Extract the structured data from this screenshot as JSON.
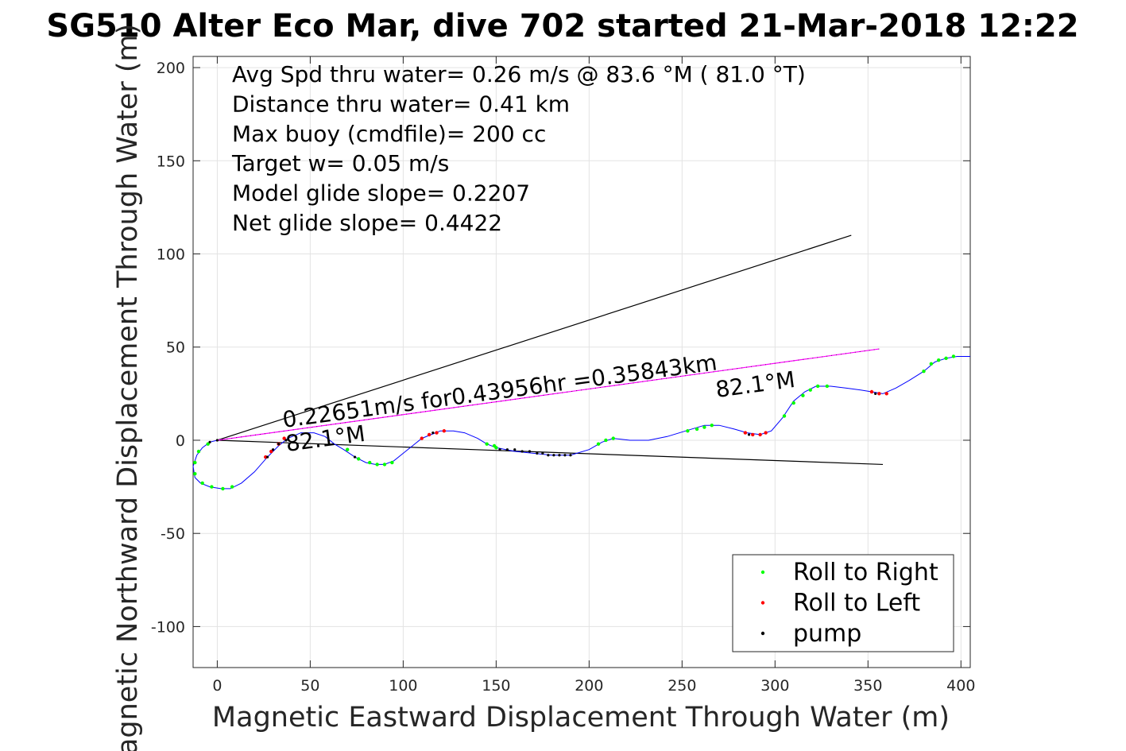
{
  "chart_data": {
    "type": "scatter",
    "title": "SG510 Alter Eco Mar, dive 702 started 21-Mar-2018 12:22",
    "xlabel": "Magnetic Eastward Displacement Through Water (m)",
    "ylabel": "Magnetic Northward Displacement Through Water (m)",
    "xlim": [
      -13,
      405
    ],
    "ylim": [
      -122,
      206
    ],
    "x_ticks": [
      0,
      50,
      100,
      150,
      200,
      250,
      300,
      350,
      400
    ],
    "y_ticks": [
      -100,
      -50,
      0,
      50,
      100,
      150,
      200
    ],
    "grid": true,
    "legend_position": "bottom-right",
    "stats_text": [
      "Avg Spd thru water=  0.26 m/s @  83.6 °M ( 81.0 °T)",
      "Distance thru water=  0.41 km",
      "Max buoy (cmdfile)= 200 cc",
      "Target w= 0.05 m/s",
      "Model glide slope= 0.2207",
      "Net glide slope= 0.4422"
    ],
    "annotations": {
      "current_label": "0.22651m/s for0.43956hr =0.35843km",
      "heading_start": "82.1°M",
      "heading_end": "82.1°M"
    },
    "track": {
      "name": "track",
      "color": "#0000ff",
      "points": [
        [
          0,
          0
        ],
        [
          -4,
          -1
        ],
        [
          -8,
          -4
        ],
        [
          -11,
          -8
        ],
        [
          -13,
          -14
        ],
        [
          -12,
          -20
        ],
        [
          -9,
          -23
        ],
        [
          -4,
          -25
        ],
        [
          2,
          -26
        ],
        [
          7,
          -26
        ],
        [
          13,
          -23
        ],
        [
          20,
          -17
        ],
        [
          27,
          -9
        ],
        [
          33,
          -3
        ],
        [
          38,
          1
        ],
        [
          45,
          4
        ],
        [
          52,
          4
        ],
        [
          58,
          2
        ],
        [
          63,
          -2
        ],
        [
          68,
          -5
        ],
        [
          74,
          -9
        ],
        [
          80,
          -12
        ],
        [
          85,
          -13
        ],
        [
          90,
          -13
        ],
        [
          95,
          -11
        ],
        [
          100,
          -7
        ],
        [
          105,
          -3
        ],
        [
          110,
          1
        ],
        [
          115,
          3
        ],
        [
          120,
          5
        ],
        [
          127,
          5
        ],
        [
          133,
          4
        ],
        [
          140,
          1
        ],
        [
          145,
          -2
        ],
        [
          150,
          -4
        ],
        [
          160,
          -6
        ],
        [
          170,
          -7
        ],
        [
          180,
          -8
        ],
        [
          190,
          -8
        ],
        [
          200,
          -5
        ],
        [
          207,
          -1
        ],
        [
          213,
          1
        ],
        [
          222,
          0
        ],
        [
          232,
          0
        ],
        [
          242,
          2
        ],
        [
          252,
          5
        ],
        [
          262,
          8
        ],
        [
          270,
          8
        ],
        [
          278,
          6
        ],
        [
          285,
          4
        ],
        [
          292,
          3
        ],
        [
          298,
          5
        ],
        [
          304,
          12
        ],
        [
          310,
          21
        ],
        [
          316,
          26
        ],
        [
          322,
          29
        ],
        [
          330,
          29
        ],
        [
          338,
          28
        ],
        [
          346,
          27
        ],
        [
          352,
          26
        ],
        [
          358,
          25
        ],
        [
          365,
          28
        ],
        [
          372,
          32
        ],
        [
          380,
          37
        ],
        [
          386,
          42
        ],
        [
          392,
          44
        ],
        [
          398,
          45
        ],
        [
          405,
          45
        ]
      ]
    },
    "roll_right": {
      "name": "Roll to Right",
      "color": "#00ff00",
      "points": [
        [
          -5,
          -2
        ],
        [
          -10,
          -6
        ],
        [
          -12,
          -12
        ],
        [
          -12,
          -18
        ],
        [
          -8,
          -23
        ],
        [
          -3,
          -25
        ],
        [
          3,
          -26
        ],
        [
          8,
          -25
        ],
        [
          70,
          -5
        ],
        [
          76,
          -10
        ],
        [
          82,
          -12
        ],
        [
          86,
          -13
        ],
        [
          90,
          -13
        ],
        [
          94,
          -12
        ],
        [
          145,
          -2
        ],
        [
          149,
          -3
        ],
        [
          150,
          -4
        ],
        [
          205,
          -2
        ],
        [
          209,
          0
        ],
        [
          213,
          1
        ],
        [
          253,
          5
        ],
        [
          258,
          6
        ],
        [
          262,
          7
        ],
        [
          266,
          8
        ],
        [
          305,
          13
        ],
        [
          310,
          20
        ],
        [
          315,
          24
        ],
        [
          319,
          27
        ],
        [
          323,
          29
        ],
        [
          328,
          29
        ],
        [
          380,
          37
        ],
        [
          384,
          41
        ],
        [
          388,
          43
        ],
        [
          392,
          44
        ],
        [
          396,
          45
        ]
      ]
    },
    "roll_left": {
      "name": "Roll to Left",
      "color": "#ff0000",
      "points": [
        [
          26,
          -9
        ],
        [
          29,
          -6
        ],
        [
          33,
          -2
        ],
        [
          36,
          1
        ],
        [
          110,
          1
        ],
        [
          114,
          3
        ],
        [
          118,
          4
        ],
        [
          122,
          5
        ],
        [
          284,
          4
        ],
        [
          288,
          3
        ],
        [
          292,
          3
        ],
        [
          295,
          4
        ],
        [
          352,
          26
        ],
        [
          356,
          25
        ],
        [
          360,
          25
        ]
      ]
    },
    "pump": {
      "name": "pump",
      "color": "#000000",
      "points": [
        [
          0,
          0
        ],
        [
          -4,
          -1
        ],
        [
          27,
          -9
        ],
        [
          30,
          -5
        ],
        [
          33,
          -2
        ],
        [
          37,
          0
        ],
        [
          152,
          -5
        ],
        [
          156,
          -5
        ],
        [
          160,
          -5
        ],
        [
          164,
          -6
        ],
        [
          168,
          -6
        ],
        [
          172,
          -7
        ],
        [
          175,
          -7
        ],
        [
          178,
          -8
        ],
        [
          181,
          -8
        ],
        [
          184,
          -8
        ],
        [
          187,
          -8
        ],
        [
          190,
          -8
        ],
        [
          74,
          -9
        ],
        [
          116,
          4
        ],
        [
          286,
          3
        ],
        [
          354,
          25
        ]
      ]
    },
    "heading_lines": [
      {
        "color": "#000000",
        "points": [
          [
            0,
            0
          ],
          [
            341,
            110
          ]
        ]
      },
      {
        "color": "#000000",
        "points": [
          [
            0,
            0
          ],
          [
            358,
            -13
          ]
        ]
      }
    ],
    "current_line": {
      "color": "#ff00ff",
      "points": [
        [
          0,
          0
        ],
        [
          356,
          49
        ]
      ]
    },
    "legend": [
      {
        "label": "Roll to Right",
        "color": "#00ff00"
      },
      {
        "label": "Roll to Left",
        "color": "#ff0000"
      },
      {
        "label": "pump",
        "color": "#000000"
      }
    ]
  }
}
